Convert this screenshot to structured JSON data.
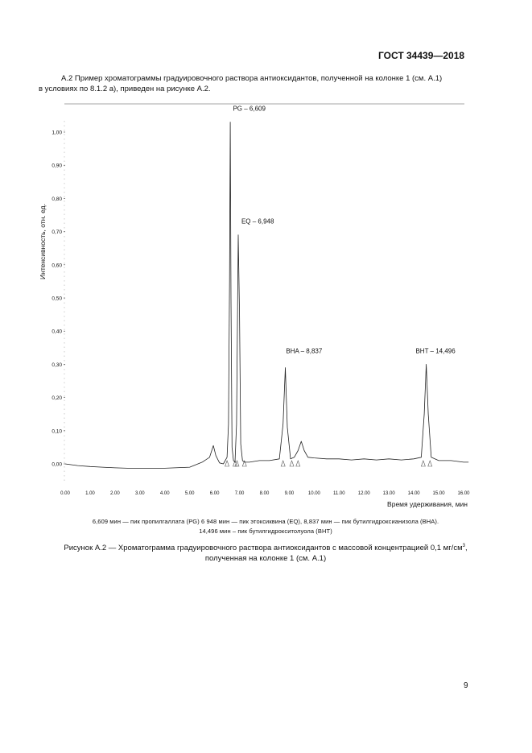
{
  "header": {
    "standard": "ГОСТ 34439—2018"
  },
  "intro": {
    "line1": "А.2 Пример хроматограммы градуировочного раствора антиоксидантов, полученной на колонке 1 (см. А.1)",
    "line2": "в условиях по 8.1.2 а), приведен на рисунке А.2."
  },
  "chart_data": {
    "type": "line",
    "title": "",
    "xlabel": "Время удерживания, мин",
    "ylabel": "Интенсивность, отн. ед.",
    "xlim": [
      0,
      16
    ],
    "ylim": [
      -0.05,
      1.06
    ],
    "xticks": [
      "0.00",
      "1.00",
      "2.00",
      "3.00",
      "4.00",
      "5.00",
      "6.00",
      "7.00",
      "8.00",
      "9.00",
      "10.00",
      "11.00",
      "12.00",
      "13.00",
      "14.00",
      "15.00",
      "16.00"
    ],
    "yticks": [
      "0,00",
      "0,10",
      "0,20",
      "0,30",
      "0,40",
      "0,50",
      "0,60",
      "0,70",
      "0,80",
      "0,90",
      "1,00"
    ],
    "grid": false,
    "peak_labels": [
      {
        "text": "PG – 6,609",
        "x": 6.609,
        "y": 1.03
      },
      {
        "text": "EQ – 6,948",
        "x": 6.948,
        "y": 0.69
      },
      {
        "text": "BHA – 8,837",
        "x": 8.837,
        "y": 0.3
      },
      {
        "text": "BHT – 14,496",
        "x": 14.496,
        "y": 0.3
      }
    ],
    "series": [
      {
        "x": [
          0.0,
          0.5,
          1.0,
          1.5,
          2.0,
          2.5,
          3.0,
          4.0,
          5.0,
          5.5,
          5.8,
          5.95,
          6.05,
          6.2,
          6.35,
          6.5,
          6.56,
          6.6,
          6.63,
          6.66,
          6.7,
          6.76,
          6.82,
          6.88,
          6.95,
          7.0,
          7.05,
          7.12,
          7.2,
          7.4,
          7.8,
          8.2,
          8.6,
          8.75,
          8.84,
          8.92,
          9.05,
          9.2,
          9.35,
          9.48,
          9.6,
          9.75,
          10.0,
          10.5,
          11.0,
          11.5,
          12.0,
          12.5,
          13.0,
          13.5,
          14.0,
          14.3,
          14.42,
          14.5,
          14.58,
          14.7,
          15.0,
          15.5,
          16.0,
          16.2
        ],
        "y": [
          0.0,
          -0.005,
          -0.008,
          -0.01,
          -0.012,
          -0.013,
          -0.013,
          -0.013,
          -0.01,
          0.005,
          0.02,
          0.055,
          0.025,
          0.003,
          0.0,
          0.02,
          0.12,
          0.55,
          1.03,
          0.5,
          0.05,
          0.01,
          0.005,
          0.12,
          0.69,
          0.45,
          0.06,
          0.01,
          0.005,
          0.005,
          0.01,
          0.01,
          0.015,
          0.12,
          0.29,
          0.11,
          0.015,
          0.02,
          0.04,
          0.068,
          0.04,
          0.02,
          0.018,
          0.015,
          0.015,
          0.012,
          0.015,
          0.012,
          0.015,
          0.012,
          0.015,
          0.02,
          0.15,
          0.3,
          0.15,
          0.02,
          0.01,
          0.01,
          0.005,
          0.005
        ]
      }
    ],
    "integration_markers_x": [
      6.5,
      6.82,
      6.9,
      7.2,
      8.75,
      9.1,
      9.35,
      14.38,
      14.65
    ]
  },
  "legend": {
    "line1": "6,609 мин — пик пропилгаллата (PG)  6 948 мин — пик этоксиквина (EQ), 8,837 мин — пик бутилгидроксианизола (ВНА).",
    "line2": "14,496 мин  – пик бутилгидрокситолуола (ВНТ)"
  },
  "caption": {
    "line1": "Рисунок А.2 — Хроматограмма градуировочного раствора антиоксидантов с массовой концентрацией 0,1 мг/см",
    "superscript": "3",
    "line1_end": ",",
    "line2": "полученная на колонке 1 (см. А.1)"
  },
  "page_number": "9"
}
